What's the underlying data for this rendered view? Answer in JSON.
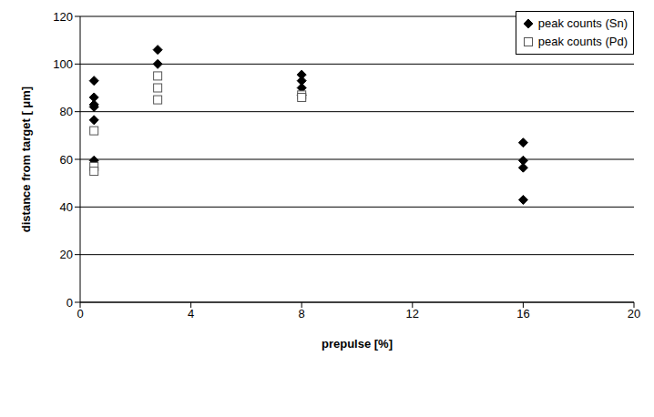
{
  "chart_data": {
    "type": "scatter",
    "x_label": "prepulse [%]",
    "y_label": "distance from target [ μm]",
    "xlim": [
      0,
      20
    ],
    "xticks": [
      0,
      4,
      8,
      12,
      16,
      20
    ],
    "ylim": [
      0,
      120
    ],
    "yticks": [
      0,
      20,
      40,
      60,
      80,
      100,
      120
    ],
    "grid": true,
    "legend": "upper right",
    "series": [
      {
        "name": "peak counts (Sn)",
        "color": "#000000",
        "marker": "diamond",
        "x": [
          0.5,
          0.5,
          0.5,
          0.5,
          0.5,
          0.5,
          2.8,
          2.8,
          8,
          8,
          8,
          8,
          16,
          16,
          16,
          16
        ],
        "values": [
          93,
          86,
          83,
          82,
          76.5,
          59.5,
          106,
          100,
          95.5,
          93,
          90,
          87,
          67,
          59.5,
          56.5,
          43
        ]
      },
      {
        "name": "peak counts (Pd)",
        "color": "#555555",
        "marker": "square",
        "x": [
          0.5,
          0.5,
          0.5,
          2.8,
          2.8,
          2.8,
          8,
          8
        ],
        "values": [
          72,
          57,
          55,
          95,
          90,
          85,
          87,
          86
        ]
      }
    ]
  }
}
